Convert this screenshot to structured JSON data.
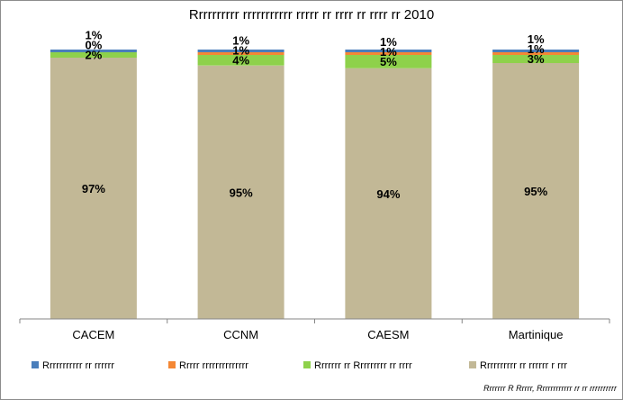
{
  "chart_data": {
    "type": "bar",
    "stacked": "percent",
    "title": "Rrrrrrrrrr rrrrrrrrrrr rrrrr rr rrrr rr rrrr rr 2010",
    "categories": [
      "CACEM",
      "CCNM",
      "CAESM",
      "Martinique"
    ],
    "series": [
      {
        "name": "Rrrrrrrrrr rr rrrrrr r rrr",
        "color": "#c2b896",
        "values": [
          97,
          95,
          94,
          95
        ],
        "labels": [
          "97%",
          "95%",
          "94%",
          "95%"
        ]
      },
      {
        "name": "Rrrrrrr rr Rrrrrrrrr rr rrrr",
        "color": "#8ed14b",
        "values": [
          2,
          4,
          5,
          3
        ],
        "labels": [
          "2%",
          "4%",
          "5%",
          "3%"
        ]
      },
      {
        "name": "Rrrrr rrrrrrrrrrrrrr",
        "color": "#f48734",
        "values": [
          0,
          1,
          1,
          1
        ],
        "labels": [
          "0%",
          "1%",
          "1%",
          "1%"
        ]
      },
      {
        "name": "Rrrrrrrrrrr rr rrrrrr",
        "color": "#4a7ebb",
        "values": [
          1,
          1,
          1,
          1
        ],
        "labels": [
          "1%",
          "1%",
          "1%",
          "1%"
        ]
      }
    ],
    "legend_order": [
      3,
      2,
      1,
      0
    ],
    "legend_position": "bottom",
    "ylim": [
      0,
      100
    ],
    "grid": false,
    "source": "Rrrrrrr R Rrrrr, Rrrrrrrrrrrr rr rr rrrrrrrrrr"
  }
}
